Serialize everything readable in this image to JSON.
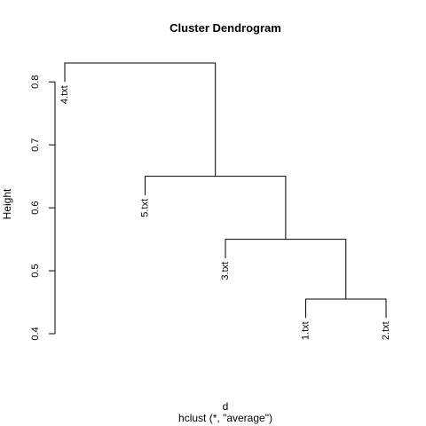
{
  "chart_data": {
    "type": "dendrogram",
    "title": "Cluster Dendrogram",
    "ylabel": "Height",
    "xlabel": "d",
    "sub": "hclust (*, \"average\")",
    "ylim": [
      0.4,
      0.83
    ],
    "yticks": [
      0.4,
      0.5,
      0.6,
      0.7,
      0.8
    ],
    "leaves": [
      "4.txt",
      "5.txt",
      "3.txt",
      "1.txt",
      "2.txt"
    ],
    "merges": [
      {
        "left": "1.txt",
        "right": "2.txt",
        "height": 0.455
      },
      {
        "left": "3.txt",
        "right": "m1",
        "height": 0.55
      },
      {
        "left": "5.txt",
        "right": "m2",
        "height": 0.65
      },
      {
        "left": "4.txt",
        "right": "m3",
        "height": 0.83
      }
    ],
    "hang": 0.03,
    "color": "#000000"
  }
}
